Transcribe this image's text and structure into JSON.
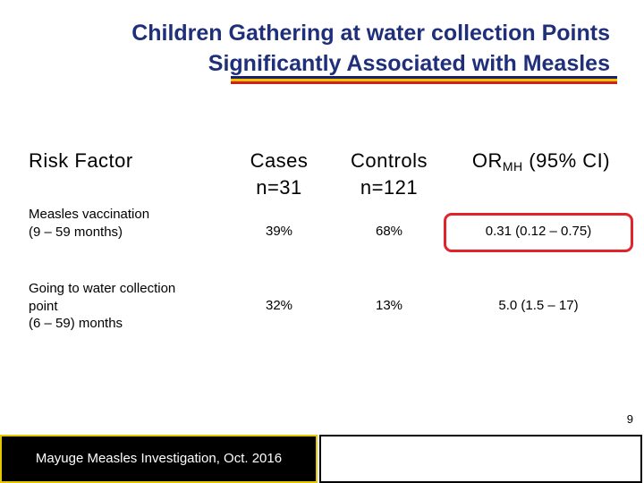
{
  "title": {
    "line1": "Children Gathering at water collection Points",
    "line2": "Significantly Associated with Measles"
  },
  "colors": {
    "title": "#1f2f7a",
    "rule_blue": "#1c1f6b",
    "rule_yellow": "#f1c400",
    "rule_red": "#d0201d",
    "highlight": "#e0242a"
  },
  "table": {
    "headers": {
      "risk_factor": "Risk Factor",
      "cases_label": "Cases",
      "cases_n": "n=31",
      "controls_label": "Controls",
      "controls_n": "n=121",
      "or_prefix": "OR",
      "or_sub": "MH",
      "or_suffix": "(95% CI)"
    },
    "rows": [
      {
        "label_line1": "Measles vaccination",
        "label_line2": "(9 – 59 months)",
        "cases": "39%",
        "controls": "68%",
        "or": "0.31 (0.12 – 0.75)"
      },
      {
        "label_line1": "Going to water collection",
        "label_line2": "point",
        "label_line3": "(6 – 59) months",
        "cases": "32%",
        "controls": "13%",
        "or": "5.0 (1.5 – 17)"
      }
    ]
  },
  "page_number": "9",
  "footer": {
    "text": "Mayuge Measles Investigation,  Oct. 2016"
  }
}
